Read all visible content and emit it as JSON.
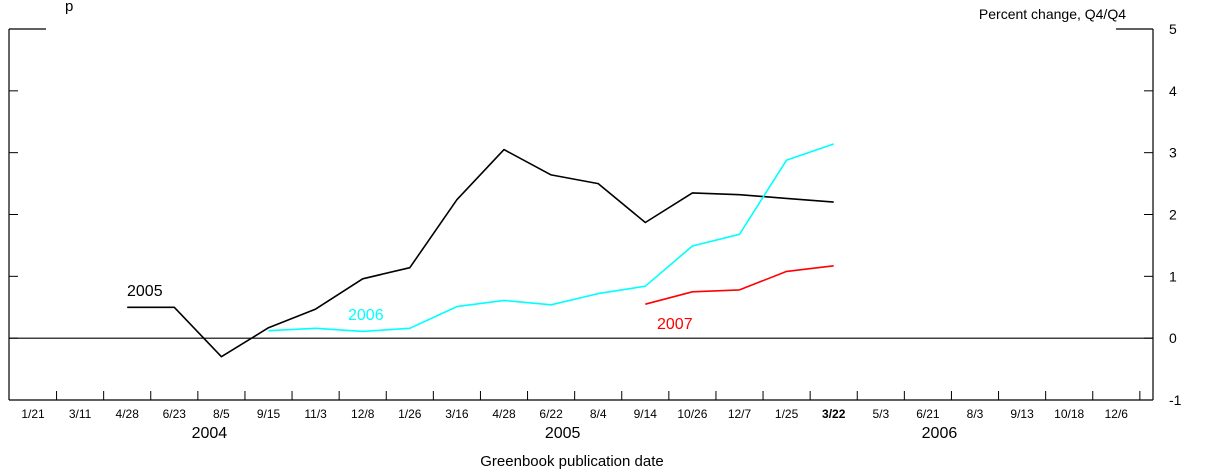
{
  "chart_data": {
    "type": "line",
    "title": "",
    "subtitle_fragment": "p",
    "ylabel": "Percent change, Q4/Q4",
    "xlabel": "Greenbook publication date",
    "ylim": [
      -1,
      5
    ],
    "y_ticks": [
      "-1",
      "0",
      "1",
      "2",
      "3",
      "4",
      "5"
    ],
    "x_ticks": [
      "1/21",
      "3/11",
      "4/28",
      "6/23",
      "8/5",
      "9/15",
      "11/3",
      "12/8",
      "1/26",
      "3/16",
      "4/28",
      "6/22",
      "8/4",
      "9/14",
      "10/26",
      "12/7",
      "1/25",
      "3/22",
      "5/3",
      "6/21",
      "8/3",
      "9/13",
      "10/18",
      "12/6"
    ],
    "highlighted_tick": "3/22",
    "year_labels": [
      "2004",
      "2005",
      "2006"
    ],
    "zero_line": true,
    "grid": false,
    "series": [
      {
        "name": "2005",
        "color": "#000000",
        "points": [
          [
            2,
            0.5
          ],
          [
            3,
            0.5
          ],
          [
            4,
            -0.3
          ],
          [
            5,
            0.17
          ],
          [
            6,
            0.47
          ],
          [
            7,
            0.96
          ],
          [
            8,
            1.14
          ],
          [
            9,
            2.24
          ],
          [
            10,
            3.05
          ],
          [
            11,
            2.64
          ],
          [
            12,
            2.5
          ],
          [
            13,
            1.87
          ],
          [
            14,
            2.35
          ],
          [
            15,
            2.32
          ],
          [
            16,
            2.26
          ],
          [
            17,
            2.2
          ]
        ]
      },
      {
        "name": "2006",
        "color": "#00ffff",
        "points": [
          [
            5,
            0.12
          ],
          [
            6,
            0.16
          ],
          [
            7,
            0.11
          ],
          [
            8,
            0.16
          ],
          [
            9,
            0.51
          ],
          [
            10,
            0.61
          ],
          [
            11,
            0.54
          ],
          [
            12,
            0.72
          ],
          [
            13,
            0.84
          ],
          [
            14,
            1.49
          ],
          [
            15,
            1.68
          ],
          [
            16,
            2.88
          ],
          [
            17,
            3.14
          ]
        ]
      },
      {
        "name": "2007",
        "color": "#ff0000",
        "points": [
          [
            13,
            0.55
          ],
          [
            14,
            0.75
          ],
          [
            15,
            0.78
          ],
          [
            16,
            1.08
          ],
          [
            17,
            1.17
          ]
        ]
      }
    ]
  }
}
